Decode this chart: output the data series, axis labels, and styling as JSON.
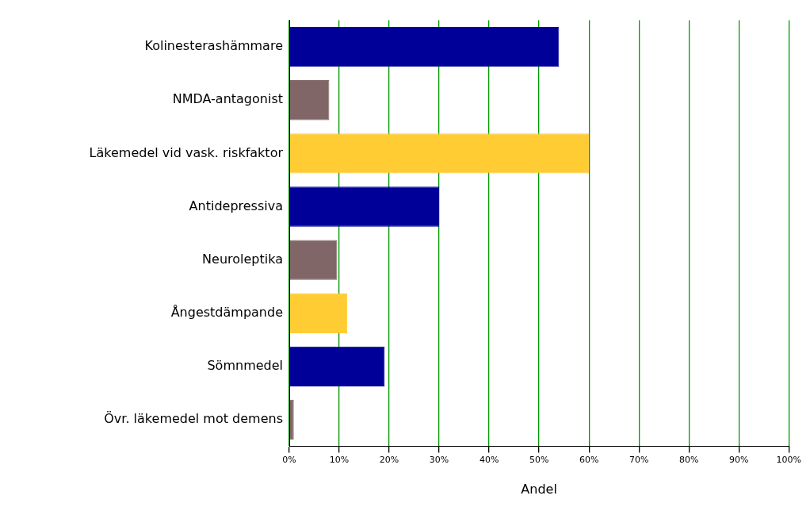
{
  "chart_data": {
    "type": "bar",
    "orientation": "horizontal",
    "xlabel": "Andel",
    "categories": [
      "Kolinesterashämmare",
      "NMDA-antagonist",
      "Läkemedel vid vask. riskfaktor",
      "Antidepressiva",
      "Neuroleptika",
      "Ångestdämpande",
      "Sömnmedel",
      "Övr. läkemedel mot demens"
    ],
    "values": [
      54,
      8,
      60,
      30,
      9.6,
      11.6,
      19.1,
      0.9
    ],
    "colors": [
      "#000099",
      "#806666",
      "#ffcc33",
      "#000099",
      "#806666",
      "#ffcc33",
      "#000099",
      "#806666"
    ],
    "xlim": [
      0,
      100
    ],
    "xticks": [
      {
        "value": 0,
        "label": "0%"
      },
      {
        "value": 10,
        "label": "10%"
      },
      {
        "value": 20,
        "label": "20%"
      },
      {
        "value": 30,
        "label": "30%"
      },
      {
        "value": 40,
        "label": "40%"
      },
      {
        "value": 50,
        "label": "50%"
      },
      {
        "value": 60,
        "label": "60%"
      },
      {
        "value": 70,
        "label": "70%"
      },
      {
        "value": 80,
        "label": "80%"
      },
      {
        "value": 90,
        "label": "90%"
      },
      {
        "value": 100,
        "label": "100%"
      }
    ],
    "grid": "x",
    "legend": false
  }
}
